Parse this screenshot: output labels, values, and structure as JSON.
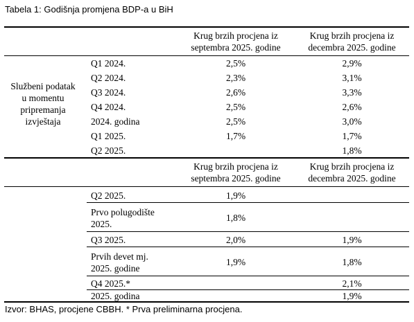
{
  "caption": "Tabela 1: Godišnja promjena BDP-a u BiH",
  "headers": {
    "sept": [
      "Krug brzih procjena iz",
      "septembra 2025. godine"
    ],
    "dec": [
      "Krug brzih procjena iz",
      "decembra 2025. godine"
    ]
  },
  "official_label": [
    "Službeni podatak",
    "u momentu",
    "pripremanja",
    "izvještaja"
  ],
  "table1": [
    {
      "period": "Q1 2024.",
      "sept": "2,5%",
      "dec": "2,9%"
    },
    {
      "period": "Q2 2024.",
      "sept": "2,3%",
      "dec": "3,1%"
    },
    {
      "period": "Q3 2024.",
      "sept": "2,6%",
      "dec": "3,3%"
    },
    {
      "period": "Q4 2024.",
      "sept": "2,5%",
      "dec": "2,6%"
    },
    {
      "period": "2024. godina",
      "sept": "2,5%",
      "dec": "3,0%"
    },
    {
      "period": "Q1 2025.",
      "sept": "1,7%",
      "dec": "1,7%"
    },
    {
      "period": "Q2 2025.",
      "sept": "",
      "dec": "1,8%"
    }
  ],
  "table2": [
    {
      "period": [
        "Q2 2025."
      ],
      "sept": "1,9%",
      "dec": ""
    },
    {
      "period": [
        "Prvo polugodište",
        "2025."
      ],
      "sept": "1,8%",
      "dec": ""
    },
    {
      "period": [
        "Q3 2025."
      ],
      "sept": "2,0%",
      "dec": "1,9%"
    },
    {
      "period": [
        "Prvih devet mj.",
        "2025. godine"
      ],
      "sept": "1,9%",
      "dec": "1,8%"
    },
    {
      "period": [
        "Q4 2025.*"
      ],
      "sept": "",
      "dec": "2,1%"
    },
    {
      "period": [
        "2025. godina"
      ],
      "sept": "",
      "dec": "1,9%"
    }
  ],
  "footer": "Izvor: BHAS, procjene CBBH. * Prva preliminarna procjena."
}
